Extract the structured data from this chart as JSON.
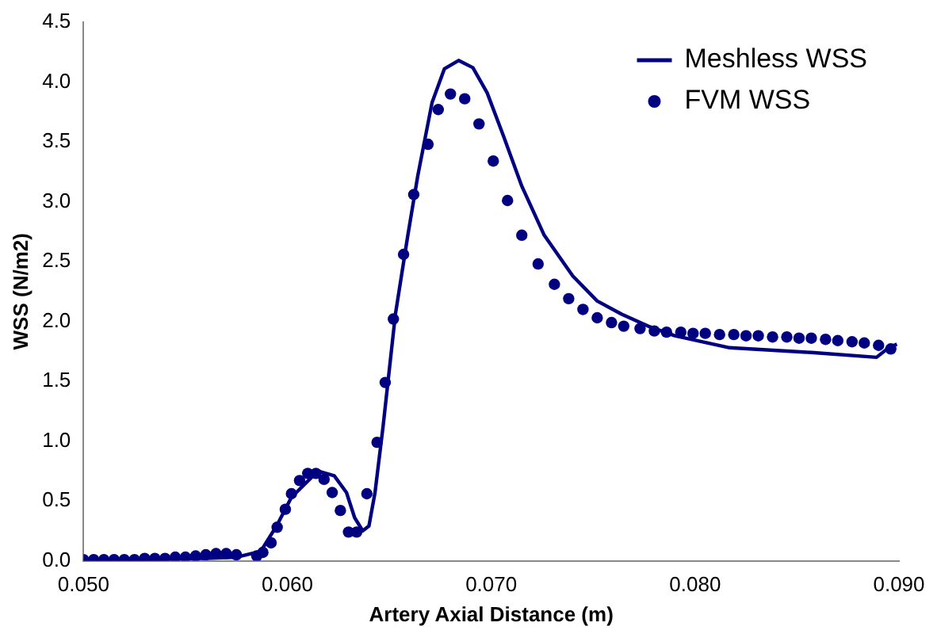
{
  "chart_data": {
    "type": "scatter",
    "xlabel": "Artery Axial Distance (m)",
    "ylabel": "WSS (N/m2)",
    "xlim": [
      0.05,
      0.09
    ],
    "xticks": [
      {
        "value": 0.05,
        "label": "0.050"
      },
      {
        "value": 0.06,
        "label": "0.060"
      },
      {
        "value": 0.07,
        "label": "0.070"
      },
      {
        "value": 0.08,
        "label": "0.080"
      },
      {
        "value": 0.09,
        "label": "0.090"
      }
    ],
    "ylim": [
      0,
      4.5
    ],
    "yticks": [
      {
        "value": 0,
        "label": "0.0"
      },
      0.5,
      {
        "value": 1,
        "label": "1.0"
      },
      1.5,
      {
        "value": 2,
        "label": "2.0"
      },
      2.5,
      {
        "value": 3,
        "label": "3.0"
      },
      3.5,
      {
        "value": 4,
        "label": "4.0"
      },
      4.5
    ],
    "grid": false,
    "legend": "top right",
    "series": [
      {
        "name": "Meshless WSS",
        "type": "line",
        "color": "#000080",
        "marker": "none",
        "line_style": "solid",
        "x": [
          0.05,
          0.053,
          0.056,
          0.0575,
          0.0587,
          0.0595,
          0.0602,
          0.0615,
          0.0623,
          0.0629,
          0.0633,
          0.0637,
          0.064,
          0.0643,
          0.0647,
          0.0653,
          0.0659,
          0.0664,
          0.0671,
          0.0677,
          0.0684,
          0.0691,
          0.0698,
          0.0706,
          0.0715,
          0.0726,
          0.074,
          0.0752,
          0.0764,
          0.0777,
          0.079,
          0.0817,
          0.0857,
          0.0889,
          0.0895,
          0.0899
        ],
        "values": [
          0.0,
          0.01,
          0.02,
          0.03,
          0.08,
          0.3,
          0.53,
          0.75,
          0.71,
          0.57,
          0.36,
          0.25,
          0.29,
          0.57,
          1.13,
          2.06,
          2.71,
          3.22,
          3.83,
          4.11,
          4.18,
          4.12,
          3.91,
          3.55,
          3.13,
          2.72,
          2.38,
          2.17,
          2.06,
          1.96,
          1.88,
          1.78,
          1.74,
          1.7,
          1.78,
          1.81
        ]
      },
      {
        "name": "FVM WSS",
        "type": "scatter",
        "color": "#000080",
        "marker": "circle",
        "x": [
          0.05,
          0.0505,
          0.051,
          0.0515,
          0.052,
          0.0525,
          0.053,
          0.0535,
          0.054,
          0.0545,
          0.055,
          0.0555,
          0.056,
          0.0565,
          0.057,
          0.0575,
          0.0585,
          0.0588,
          0.0592,
          0.0595,
          0.0599,
          0.0602,
          0.0606,
          0.061,
          0.0614,
          0.0618,
          0.0622,
          0.0626,
          0.063,
          0.0634,
          0.0639,
          0.0644,
          0.0648,
          0.0652,
          0.0657,
          0.0662,
          0.0669,
          0.0674,
          0.068,
          0.0687,
          0.0694,
          0.0701,
          0.0708,
          0.0715,
          0.0723,
          0.0731,
          0.0738,
          0.0745,
          0.0752,
          0.0759,
          0.0765,
          0.0773,
          0.078,
          0.0786,
          0.0793,
          0.0799,
          0.0805,
          0.0812,
          0.0819,
          0.0825,
          0.0831,
          0.0838,
          0.0845,
          0.0851,
          0.0857,
          0.0864,
          0.087,
          0.0877,
          0.0883,
          0.089,
          0.0896
        ],
        "values": [
          0.01,
          0.01,
          0.01,
          0.01,
          0.01,
          0.01,
          0.02,
          0.02,
          0.02,
          0.03,
          0.03,
          0.04,
          0.05,
          0.06,
          0.06,
          0.05,
          0.04,
          0.07,
          0.15,
          0.28,
          0.43,
          0.56,
          0.67,
          0.73,
          0.73,
          0.68,
          0.57,
          0.42,
          0.24,
          0.24,
          0.56,
          0.99,
          1.49,
          2.02,
          2.56,
          3.06,
          3.48,
          3.77,
          3.9,
          3.86,
          3.65,
          3.34,
          3.01,
          2.72,
          2.48,
          2.31,
          2.19,
          2.1,
          2.03,
          1.99,
          1.96,
          1.94,
          1.92,
          1.91,
          1.91,
          1.9,
          1.9,
          1.89,
          1.89,
          1.88,
          1.88,
          1.87,
          1.87,
          1.86,
          1.86,
          1.85,
          1.84,
          1.83,
          1.82,
          1.8,
          1.77
        ]
      }
    ]
  }
}
